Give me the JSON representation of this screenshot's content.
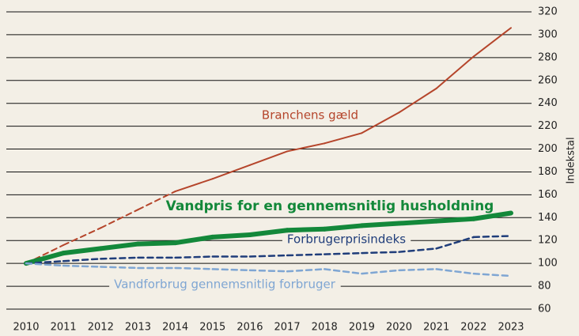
{
  "chart_data": {
    "type": "line",
    "y_label": "Indekstal",
    "x": [
      "2010",
      "2011",
      "2012",
      "2013",
      "2014",
      "2015",
      "2016",
      "2017",
      "2018",
      "2019",
      "2020",
      "2021",
      "2022",
      "2023"
    ],
    "series": [
      {
        "name": "Branchens gæld",
        "color": "#b5452b",
        "width": 2,
        "dashed_segments": 4,
        "values": [
          100,
          116,
          131,
          147,
          163,
          174,
          186,
          198,
          205,
          214,
          232,
          253,
          281,
          306
        ]
      },
      {
        "name": "Vandpris for en gennemsnitlig husholdning",
        "color": "#13883a",
        "width": 6,
        "dashed_segments": 0,
        "values": [
          100,
          109,
          113,
          117,
          118,
          123,
          125,
          129,
          130,
          133,
          135,
          137,
          139,
          144
        ]
      },
      {
        "name": "Forbrugerprisindeks",
        "color": "#1f3d7a",
        "width": 2.5,
        "dashed_segments": 13,
        "values": [
          100,
          102,
          104,
          105,
          105,
          106,
          106,
          107,
          108,
          109,
          110,
          113,
          123,
          124
        ]
      },
      {
        "name": "Vandforbrug gennemsnitlig forbruger",
        "color": "#7fa6d3",
        "width": 2.5,
        "dashed_segments": 13,
        "values": [
          100,
          98,
          97,
          96,
          96,
          95,
          94,
          93,
          95,
          91,
          94,
          95,
          91,
          89
        ]
      }
    ],
    "ylim": [
      60,
      320
    ],
    "yticks": [
      60,
      80,
      100,
      120,
      140,
      160,
      180,
      200,
      220,
      240,
      260,
      280,
      300,
      320
    ],
    "grid": true
  }
}
